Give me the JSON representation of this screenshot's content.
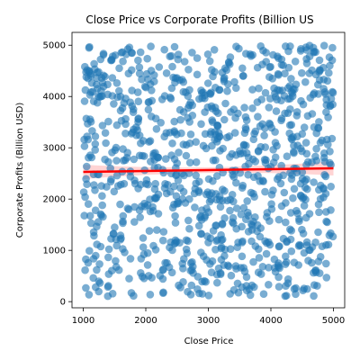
{
  "chart_data": {
    "type": "scatter",
    "title": "Close Price vs Corporate Profits (Billion US",
    "xlabel": "Close Price",
    "ylabel": "Corporate Profits (Billion USD)",
    "xlim": [
      820,
      5180
    ],
    "ylim": [
      -120,
      5250
    ],
    "x_ticks": [
      1000,
      2000,
      3000,
      4000,
      5000
    ],
    "y_ticks": [
      0,
      1000,
      2000,
      3000,
      4000,
      5000
    ],
    "grid": false,
    "legend": "none",
    "point_count": 1000,
    "x_range": [
      1000,
      5000
    ],
    "y_range": [
      100,
      5000
    ],
    "point_color": "#1f77b4",
    "point_alpha": 0.6,
    "trend_line": {
      "x": [
        1000,
        5000
      ],
      "y": [
        2530,
        2600
      ],
      "color": "#ff0000"
    },
    "confidence_band_color": "#ffb0b0",
    "seed": 20240613
  }
}
